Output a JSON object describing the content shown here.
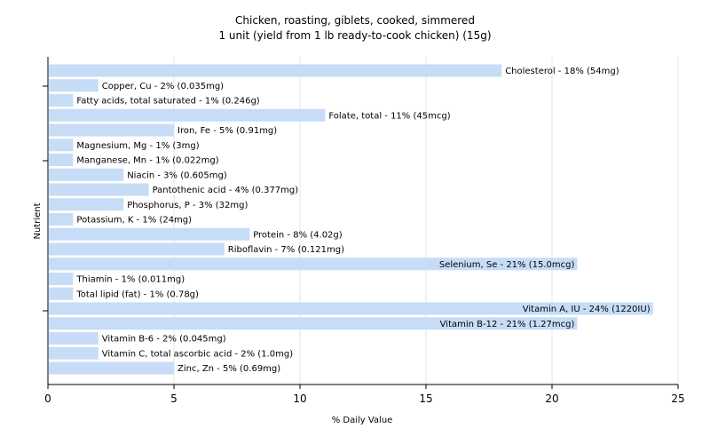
{
  "chart_data": {
    "type": "bar",
    "orientation": "horizontal",
    "title": "Chicken, roasting, giblets, cooked, simmered",
    "subtitle": "1 unit (yield from 1 lb ready-to-cook chicken) (15g)",
    "xlabel": "% Daily Value",
    "ylabel": "Nutrient",
    "xlim": [
      0,
      25
    ],
    "xticks": [
      0,
      5,
      10,
      15,
      20,
      25
    ],
    "grid": true,
    "bar_color": "#c6dcf7",
    "categories": [
      "Cholesterol",
      "Copper, Cu",
      "Fatty acids, total saturated",
      "Folate, total",
      "Iron, Fe",
      "Magnesium, Mg",
      "Manganese, Mn",
      "Niacin",
      "Pantothenic acid",
      "Phosphorus, P",
      "Potassium, K",
      "Protein",
      "Riboflavin",
      "Selenium, Se",
      "Thiamin",
      "Total lipid (fat)",
      "Vitamin A, IU",
      "Vitamin B-12",
      "Vitamin B-6",
      "Vitamin C, total ascorbic acid",
      "Zinc, Zn"
    ],
    "values": [
      18,
      2,
      1,
      11,
      5,
      1,
      1,
      3,
      4,
      3,
      1,
      8,
      7,
      21,
      1,
      1,
      24,
      21,
      2,
      2,
      5
    ],
    "labels": [
      "Cholesterol - 18% (54mg)",
      "Copper, Cu - 2% (0.035mg)",
      "Fatty acids, total saturated - 1% (0.246g)",
      "Folate, total - 11% (45mcg)",
      "Iron, Fe - 5% (0.91mg)",
      "Magnesium, Mg - 1% (3mg)",
      "Manganese, Mn - 1% (0.022mg)",
      "Niacin - 3% (0.605mg)",
      "Pantothenic acid - 4% (0.377mg)",
      "Phosphorus, P - 3% (32mg)",
      "Potassium, K - 1% (24mg)",
      "Protein - 8% (4.02g)",
      "Riboflavin - 7% (0.121mg)",
      "Selenium, Se - 21% (15.0mcg)",
      "Thiamin - 1% (0.011mg)",
      "Total lipid (fat) - 1% (0.78g)",
      "Vitamin A, IU - 24% (1220IU)",
      "Vitamin B-12 - 21% (1.27mcg)",
      "Vitamin B-6 - 2% (0.045mg)",
      "Vitamin C, total ascorbic acid - 2% (1.0mg)",
      "Zinc, Zn - 5% (0.69mg)"
    ]
  }
}
